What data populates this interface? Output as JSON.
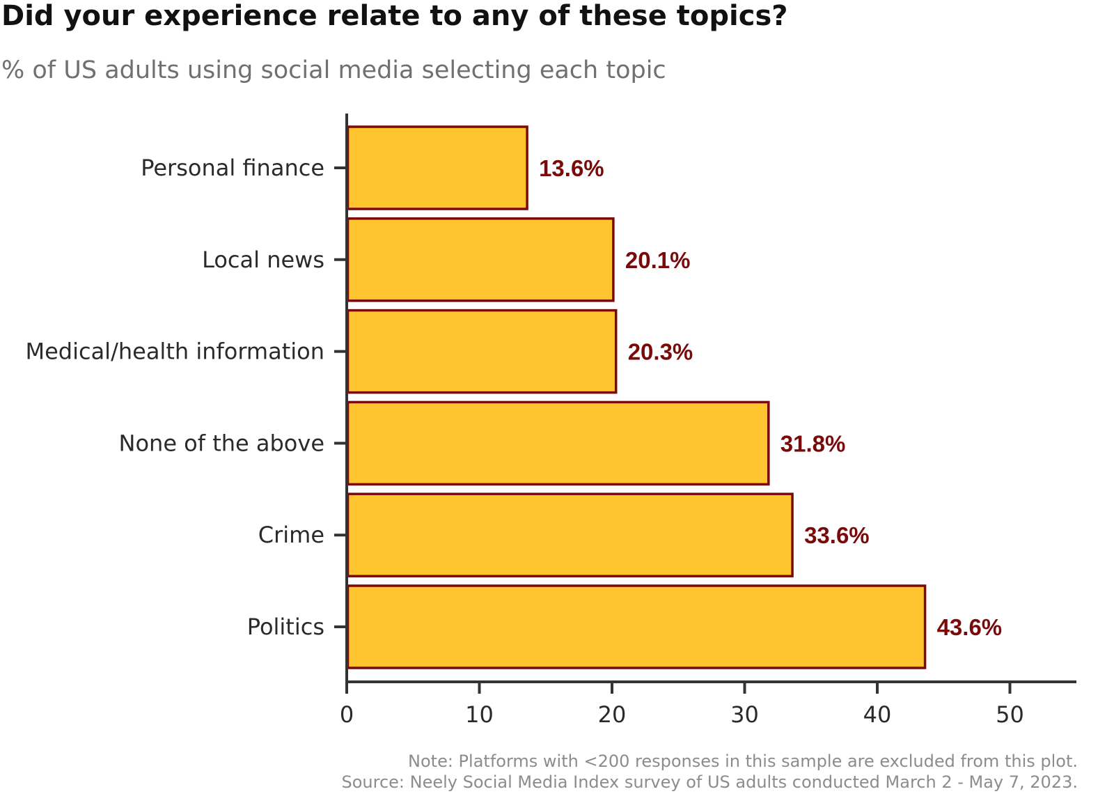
{
  "chart_data": {
    "type": "bar",
    "orientation": "horizontal",
    "title": "Did your experience relate to any of these topics?",
    "subtitle": "% of US adults using social media selecting each topic",
    "categories": [
      "Personal finance",
      "Local news",
      "Medical/health information",
      "None of the above",
      "Crime",
      "Politics"
    ],
    "values": [
      13.6,
      20.1,
      20.3,
      31.8,
      33.6,
      43.6
    ],
    "data_labels": [
      "13.6%",
      "20.1%",
      "20.3%",
      "31.8%",
      "33.6%",
      "43.6%"
    ],
    "xlabel": "",
    "ylabel": "",
    "xlim": [
      0,
      55
    ],
    "x_ticks": [
      0,
      10,
      20,
      30,
      40,
      50
    ],
    "x_tick_labels": [
      "0",
      "10",
      "20",
      "30",
      "40",
      "50"
    ],
    "grid": false,
    "legend": "none",
    "colors": {
      "bar_fill": "#FEC52E",
      "bar_stroke": "#7A0A0A",
      "data_label": "#7A0A0A",
      "axis": "#333333"
    },
    "note": "Note: Platforms with <200 responses in this sample are excluded from this plot.",
    "source": "Source: Neely Social Media Index survey of US adults conducted March 2 - May 7, 2023."
  }
}
